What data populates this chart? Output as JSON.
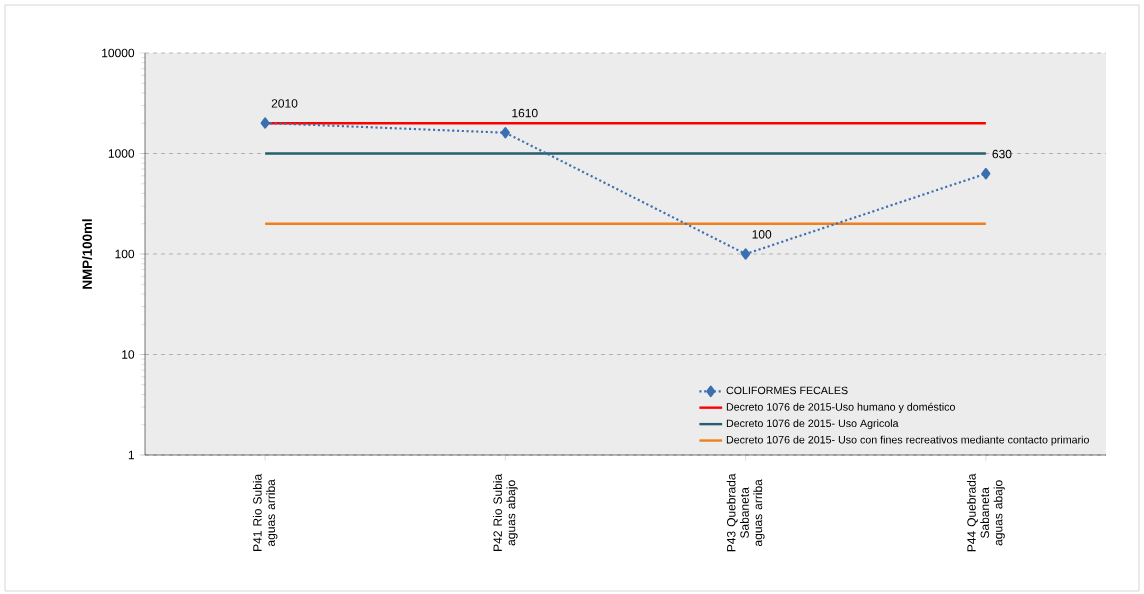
{
  "chart_data": {
    "type": "line",
    "ylabel": "NMP/100ml",
    "log": "y",
    "ylim": [
      1,
      10000
    ],
    "yticks": [
      1,
      10,
      100,
      1000,
      10000
    ],
    "grid": "y",
    "legend": "bottom right",
    "categories": [
      "P41 Rio Subia aguas arriba",
      "P42 Rio Subia aguas abajo",
      "P43 Quebrada Sabaneta aguas arriba",
      "P44 Quebrada Sabaneta aguas abajo"
    ],
    "series": [
      {
        "name": "COLIFORMES FECALES",
        "color": "#3a6fb0",
        "values": [
          2010,
          1610,
          100,
          630
        ],
        "value_labels": [
          "2010",
          "1610",
          "100",
          "630"
        ],
        "marker": "diamond",
        "line_style": "dotted"
      }
    ],
    "ref_lines": [
      {
        "axis": "y",
        "value": 2000,
        "label": "Decreto 1076 de 2015-Uso humano y doméstico",
        "color": "#ff0000",
        "line_style": "solid"
      },
      {
        "axis": "y",
        "value": 1000,
        "label": "Decreto 1076 de 2015- Uso Agricola",
        "color": "#255e6e",
        "line_style": "solid"
      },
      {
        "axis": "y",
        "value": 200,
        "label": "Decreto 1076 de 2015- Uso con fines recreativos mediante contacto primario",
        "color": "#f07f1d",
        "line_style": "solid"
      }
    ]
  }
}
